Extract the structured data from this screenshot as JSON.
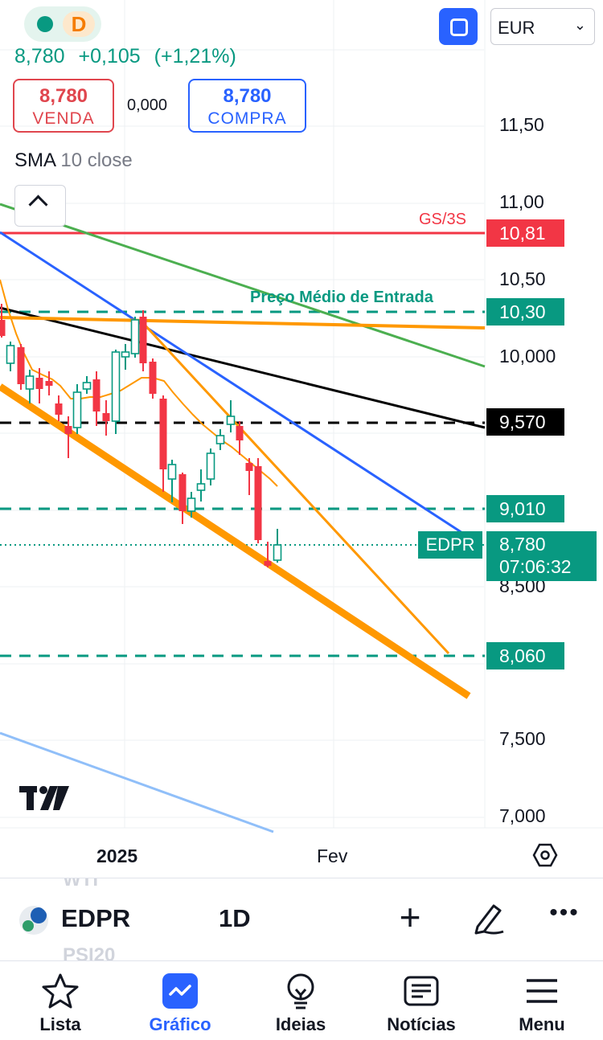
{
  "header": {
    "status_badge": "D",
    "currency_select": "EUR",
    "currency_chevron": "⌄",
    "last_price": "8,780",
    "change_abs": "+0,105",
    "change_pct": "(+1,21%)"
  },
  "trade_buttons": {
    "sell_price": "8,780",
    "sell_label": "VENDA",
    "spread": "0,000",
    "buy_price": "8,780",
    "buy_label": "COMPRA"
  },
  "indicator": {
    "name": "SMA",
    "params": "10 close"
  },
  "price_axis": {
    "ticks": [
      "11,50",
      "11,00",
      "10,50",
      "10,000",
      "8,500",
      "7,500",
      "7,000"
    ]
  },
  "price_tags": {
    "gs3s_label": "GS/3S",
    "gs3s_value": "10,81",
    "entry_label": "Preço Médio de Entrada",
    "entry_value": "10,30",
    "black_value": "9,570",
    "green1_value": "9,010",
    "green2_value": "8,060",
    "symbol_tag": "EDPR",
    "current_value": "8,780",
    "countdown": "07:06:32"
  },
  "time_axis": {
    "labels": [
      "2025",
      "Fev"
    ]
  },
  "symbol_bar": {
    "ghost_top": "WTI",
    "ghost_bottom": "PSI20",
    "symbol": "EDPR",
    "interval": "1D",
    "add_glyph": "+",
    "more_glyph": "•••"
  },
  "bottom_nav": {
    "items": [
      {
        "label": "Lista",
        "icon": "star-icon"
      },
      {
        "label": "Gráfico",
        "icon": "chart-icon"
      },
      {
        "label": "Ideias",
        "icon": "lightbulb-icon"
      },
      {
        "label": "Notícias",
        "icon": "news-icon"
      },
      {
        "label": "Menu",
        "icon": "menu-icon"
      }
    ],
    "active_index": 1
  },
  "colors": {
    "up": "#089981",
    "down": "#f23645",
    "accent": "#2962ff",
    "trend_orange": "#ff9800"
  }
}
